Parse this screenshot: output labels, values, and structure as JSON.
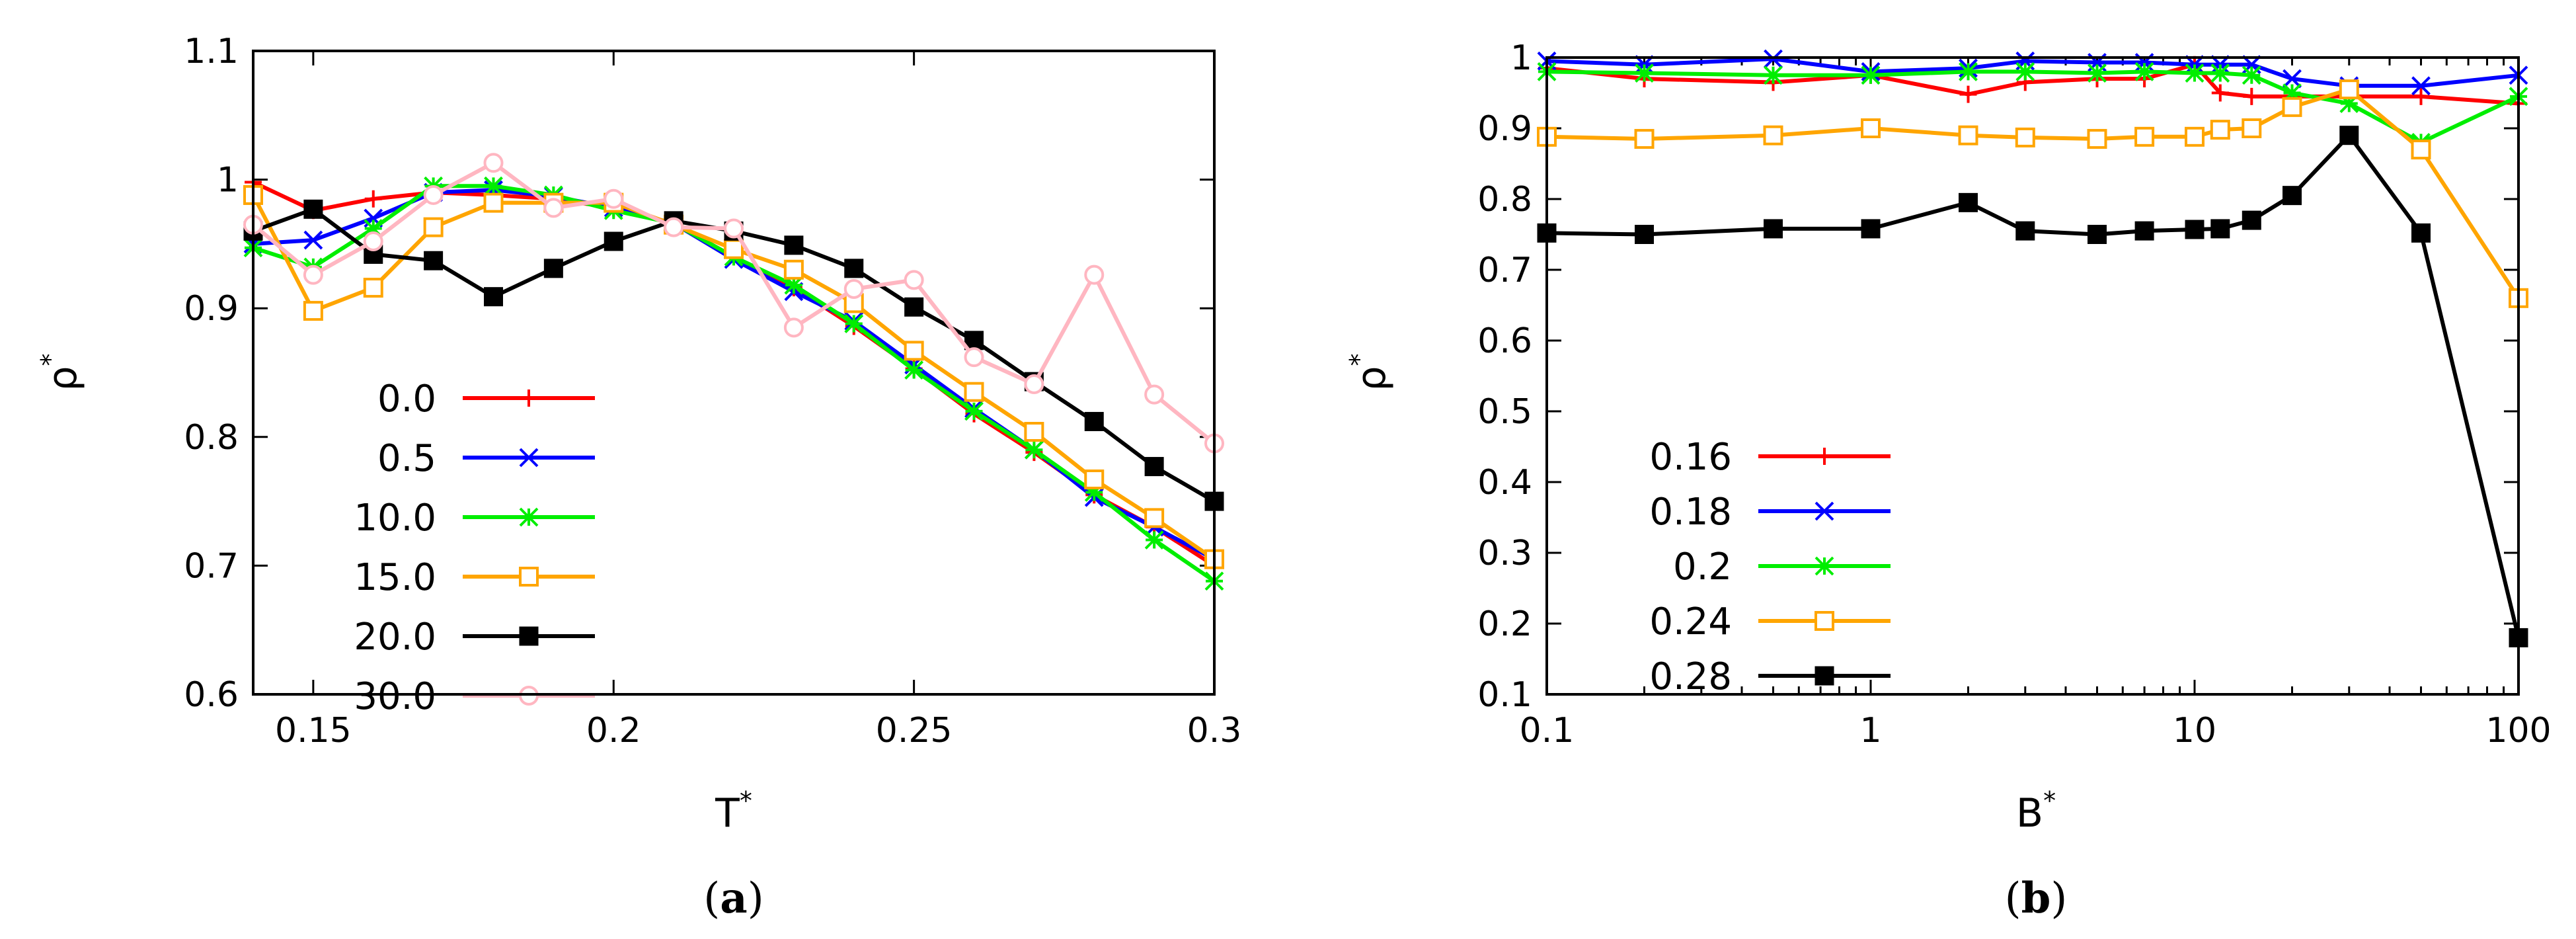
{
  "chart_data": [
    {
      "panel": "(a)",
      "panel_prefix": "(",
      "panel_letter": "a",
      "panel_suffix": ")",
      "type": "line",
      "title": "",
      "xlabel": "T",
      "xlabel_sup": "*",
      "ylabel": "ρ",
      "ylabel_sup": "*",
      "xlim": [
        0.14,
        0.3
      ],
      "ylim": [
        0.6,
        1.1
      ],
      "xscale": "linear",
      "xticks": [
        0.15,
        0.2,
        0.25,
        0.3
      ],
      "xtick_labels": [
        "0.15",
        "0.2",
        "0.25",
        "0.3"
      ],
      "yticks": [
        0.6,
        0.7,
        0.8,
        0.9,
        1.0,
        1.1
      ],
      "ytick_labels": [
        "0.6",
        "0.7",
        "0.8",
        "0.9",
        "1",
        "1.1"
      ],
      "grid": false,
      "legend_position": "bottom-left",
      "x": [
        0.14,
        0.15,
        0.16,
        0.17,
        0.18,
        0.19,
        0.2,
        0.21,
        0.22,
        0.23,
        0.24,
        0.25,
        0.26,
        0.27,
        0.28,
        0.29,
        0.3
      ],
      "series": [
        {
          "name": "0.0",
          "color": "#ff0000",
          "marker": "plus",
          "values": [
            0.998,
            0.976,
            0.985,
            0.99,
            0.988,
            0.985,
            0.978,
            0.966,
            0.94,
            0.916,
            0.886,
            0.853,
            0.818,
            0.788,
            0.755,
            0.73,
            0.7
          ]
        },
        {
          "name": "0.5",
          "color": "#0000ff",
          "marker": "cross",
          "values": [
            0.95,
            0.953,
            0.97,
            0.99,
            0.992,
            0.987,
            0.978,
            0.966,
            0.938,
            0.913,
            0.89,
            0.856,
            0.822,
            0.79,
            0.753,
            0.73,
            0.705
          ]
        },
        {
          "name": "10.0",
          "color": "#00ee00",
          "marker": "star",
          "values": [
            0.947,
            0.932,
            0.962,
            0.995,
            0.995,
            0.988,
            0.976,
            0.966,
            0.94,
            0.918,
            0.888,
            0.852,
            0.82,
            0.79,
            0.757,
            0.72,
            0.688
          ]
        },
        {
          "name": "15.0",
          "color": "#ffa500",
          "marker": "square-open",
          "values": [
            0.988,
            0.898,
            0.916,
            0.963,
            0.982,
            0.982,
            0.982,
            0.965,
            0.946,
            0.93,
            0.904,
            0.867,
            0.835,
            0.804,
            0.767,
            0.737,
            0.705
          ]
        },
        {
          "name": "20.0",
          "color": "#000000",
          "marker": "square-filled",
          "values": [
            0.96,
            0.977,
            0.942,
            0.937,
            0.909,
            0.931,
            0.952,
            0.968,
            0.96,
            0.949,
            0.931,
            0.901,
            0.875,
            0.843,
            0.812,
            0.777,
            0.75
          ]
        },
        {
          "name": "30.0",
          "color": "#ffb6c1",
          "marker": "circle-open",
          "values": [
            0.965,
            0.926,
            0.952,
            0.988,
            1.013,
            0.978,
            0.985,
            0.963,
            0.962,
            0.885,
            0.915,
            0.922,
            0.862,
            0.841,
            0.926,
            0.833,
            0.795
          ]
        }
      ]
    },
    {
      "panel": "(b)",
      "panel_prefix": "(",
      "panel_letter": "b",
      "panel_suffix": ")",
      "type": "line",
      "title": "",
      "xlabel": "B",
      "xlabel_sup": "*",
      "ylabel": "ρ",
      "ylabel_sup": "*",
      "xlim": [
        0.1,
        100
      ],
      "ylim": [
        0.1,
        1.0
      ],
      "xscale": "log",
      "xticks": [
        0.1,
        1,
        10,
        100
      ],
      "xtick_labels": [
        "0.1",
        "1",
        "10",
        "100"
      ],
      "yticks": [
        0.1,
        0.2,
        0.3,
        0.4,
        0.5,
        0.6,
        0.7,
        0.8,
        0.9,
        1.0
      ],
      "ytick_labels": [
        "0.1",
        "0.2",
        "0.3",
        "0.4",
        "0.5",
        "0.6",
        "0.7",
        "0.8",
        "0.9",
        "1"
      ],
      "grid": false,
      "legend_position": "bottom-left",
      "x": [
        0.1,
        0.2,
        0.5,
        1,
        2,
        3,
        5,
        7,
        10,
        12,
        15,
        20,
        30,
        50,
        100
      ],
      "series": [
        {
          "name": "0.16",
          "color": "#ff0000",
          "marker": "plus",
          "values": [
            0.985,
            0.97,
            0.965,
            0.975,
            0.948,
            0.965,
            0.97,
            0.97,
            0.99,
            0.95,
            0.945,
            0.945,
            0.945,
            0.945,
            0.935
          ]
        },
        {
          "name": "0.18",
          "color": "#0000ff",
          "marker": "cross",
          "values": [
            0.995,
            0.99,
            0.998,
            0.98,
            0.985,
            0.995,
            0.993,
            0.993,
            0.99,
            0.99,
            0.99,
            0.97,
            0.96,
            0.96,
            0.975
          ]
        },
        {
          "name": "0.2",
          "color": "#00ee00",
          "marker": "star",
          "values": [
            0.98,
            0.978,
            0.975,
            0.975,
            0.98,
            0.98,
            0.978,
            0.98,
            0.978,
            0.978,
            0.975,
            0.95,
            0.935,
            0.88,
            0.945
          ]
        },
        {
          "name": "0.24",
          "color": "#ffa500",
          "marker": "square-open",
          "values": [
            0.888,
            0.885,
            0.89,
            0.9,
            0.89,
            0.887,
            0.885,
            0.888,
            0.888,
            0.898,
            0.9,
            0.93,
            0.955,
            0.87,
            0.66
          ]
        },
        {
          "name": "0.28",
          "color": "#000000",
          "marker": "square-filled",
          "values": [
            0.752,
            0.75,
            0.758,
            0.758,
            0.795,
            0.755,
            0.75,
            0.755,
            0.757,
            0.758,
            0.77,
            0.805,
            0.89,
            0.752,
            0.18
          ]
        }
      ]
    }
  ]
}
